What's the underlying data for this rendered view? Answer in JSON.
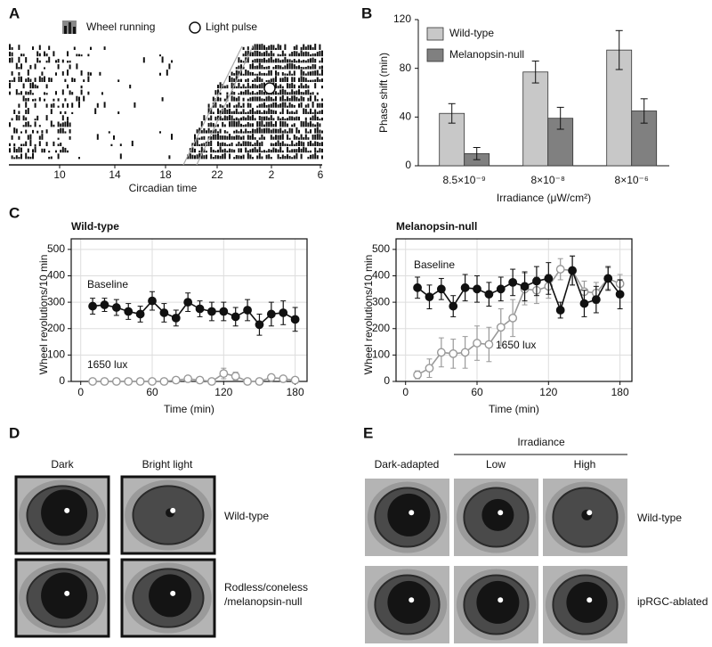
{
  "panel_labels": [
    "A",
    "B",
    "C",
    "D",
    "E"
  ],
  "actogram": {
    "legend": [
      "Wheel running",
      "Light pulse"
    ],
    "xticks": [
      "10",
      "14",
      "18",
      "22",
      "2",
      "6"
    ],
    "xlabel": "Circadian time"
  },
  "chart_data": [
    {
      "type": "bar",
      "categories": [
        "8.5×10⁻⁹",
        "8×10⁻⁸",
        "8×10⁻⁶"
      ],
      "series": [
        {
          "name": "Wild-type",
          "color": "#c8c8c8",
          "values": [
            43,
            77,
            95
          ],
          "errors": [
            8,
            9,
            16
          ]
        },
        {
          "name": "Melanopsin-null",
          "color": "#808080",
          "values": [
            10,
            39,
            45
          ],
          "errors": [
            5,
            9,
            10
          ]
        }
      ],
      "ylabel": "Phase shift (min)",
      "xlabel": "Irradiance (μW/cm²)",
      "ylim": [
        0,
        120
      ],
      "yticks": [
        0,
        40,
        80,
        120
      ],
      "grid": false,
      "legend": "top-left"
    },
    {
      "type": "line",
      "title": "Wild-type",
      "x": [
        10,
        20,
        30,
        40,
        50,
        60,
        70,
        80,
        90,
        100,
        110,
        120,
        130,
        140,
        150,
        160,
        170,
        180
      ],
      "series": [
        {
          "name": "Baseline",
          "color": "#111111",
          "values": [
            285,
            290,
            280,
            265,
            255,
            305,
            260,
            240,
            300,
            275,
            265,
            265,
            245,
            270,
            215,
            255,
            260,
            235
          ],
          "errors": [
            30,
            25,
            30,
            30,
            30,
            35,
            35,
            30,
            35,
            30,
            35,
            35,
            35,
            40,
            40,
            45,
            45,
            45
          ]
        },
        {
          "name": "1650 lux",
          "color": "#999999",
          "values": [
            0,
            0,
            0,
            0,
            0,
            0,
            0,
            5,
            10,
            5,
            0,
            30,
            20,
            0,
            0,
            15,
            10,
            5
          ],
          "errors": [
            0,
            0,
            0,
            0,
            0,
            0,
            0,
            5,
            8,
            5,
            0,
            20,
            15,
            0,
            0,
            10,
            10,
            5
          ]
        }
      ],
      "xlabel": "Time (min)",
      "ylabel": "Wheel revolutions/10 min",
      "xlim": [
        -8,
        190
      ],
      "xticks": [
        0,
        60,
        120,
        180
      ],
      "ylim": [
        0,
        540
      ],
      "yticks": [
        0,
        100,
        200,
        300,
        400,
        500
      ],
      "grid": true
    },
    {
      "type": "line",
      "title": "Melanopsin-null",
      "x": [
        10,
        20,
        30,
        40,
        50,
        60,
        70,
        80,
        90,
        100,
        110,
        120,
        130,
        140,
        150,
        160,
        170,
        180
      ],
      "series": [
        {
          "name": "Baseline",
          "color": "#111111",
          "values": [
            355,
            320,
            350,
            285,
            355,
            350,
            330,
            350,
            375,
            360,
            380,
            390,
            270,
            420,
            295,
            310,
            390,
            330
          ],
          "errors": [
            40,
            45,
            40,
            40,
            50,
            50,
            45,
            45,
            50,
            55,
            55,
            60,
            30,
            55,
            50,
            50,
            45,
            55
          ]
        },
        {
          "name": "1650 lux",
          "color": "#999999",
          "values": [
            25,
            50,
            110,
            105,
            110,
            145,
            140,
            205,
            240,
            350,
            345,
            360,
            425,
            420,
            340,
            335,
            390,
            370
          ],
          "errors": [
            15,
            35,
            55,
            55,
            60,
            65,
            65,
            70,
            70,
            60,
            50,
            45,
            40,
            55,
            40,
            40,
            40,
            35
          ]
        }
      ],
      "xlabel": "Time (min)",
      "ylabel": "Wheel revolutions/10 min",
      "xlim": [
        -8,
        190
      ],
      "xticks": [
        0,
        60,
        120,
        180
      ],
      "ylim": [
        0,
        540
      ],
      "yticks": [
        0,
        100,
        200,
        300,
        400,
        500
      ],
      "grid": true
    }
  ],
  "pupil_d": {
    "columns": [
      "Dark",
      "Bright light"
    ],
    "rows": [
      [
        "Wild-type"
      ],
      [
        "Rodless/coneless",
        "/melanopsin-null"
      ]
    ]
  },
  "pupil_e": {
    "group": "Irradiance",
    "columns": [
      "Dark-adapted",
      "Low",
      "High"
    ],
    "rows": [
      [
        "Wild-type"
      ],
      [
        "ipRGC-ablated"
      ]
    ]
  }
}
